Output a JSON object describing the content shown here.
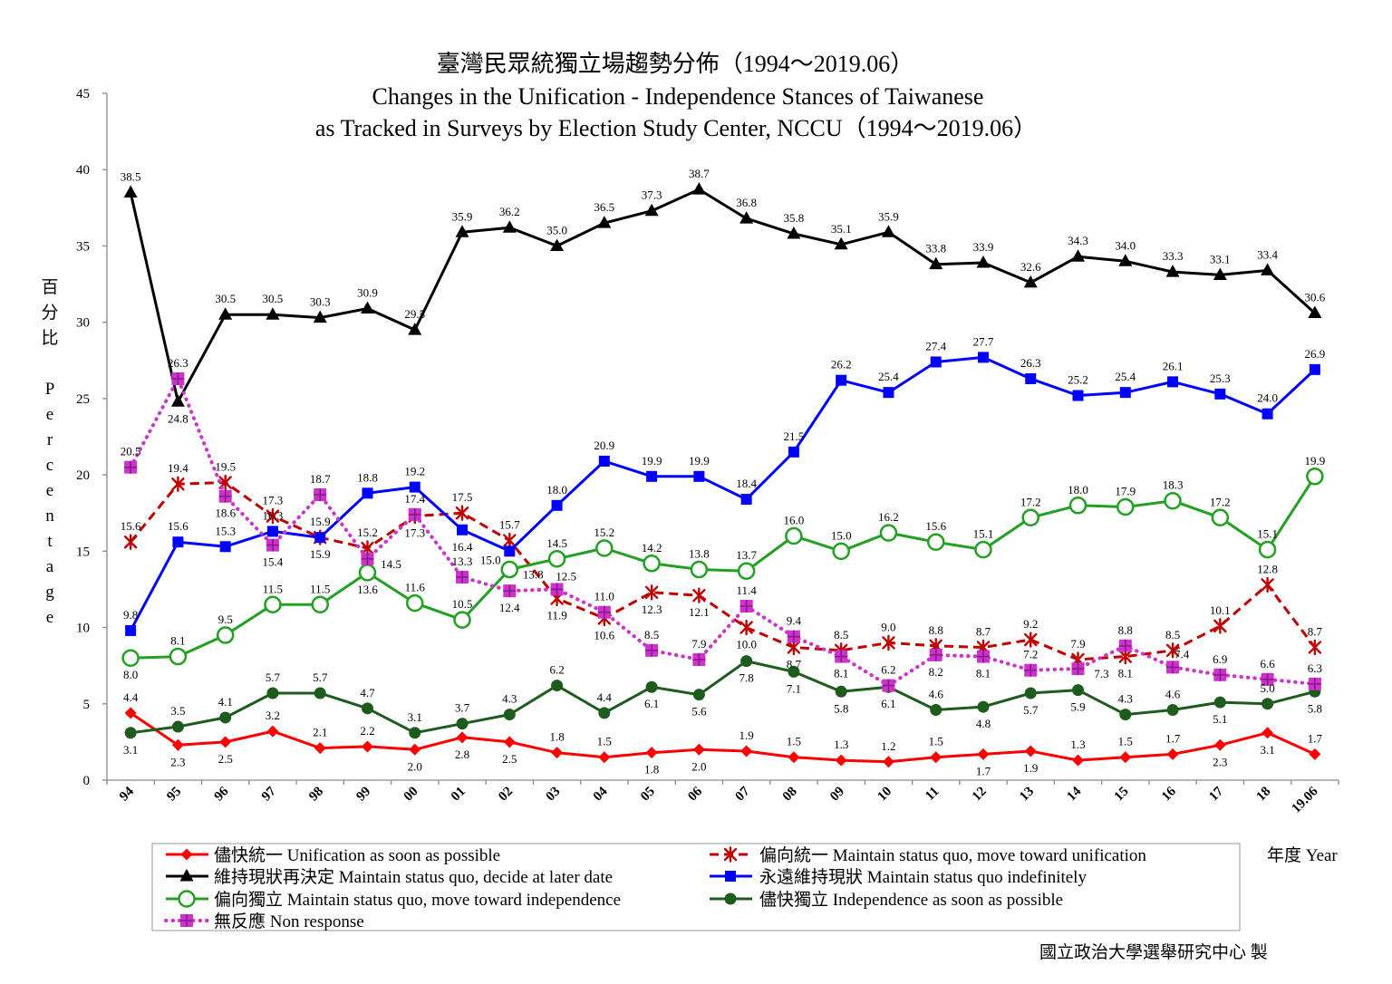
{
  "chart_data": {
    "type": "line",
    "title": [
      "臺灣民眾統獨立場趨勢分佈（1994～2019.06）",
      "Changes in the Unification - Independence Stances of Taiwanese",
      "as Tracked in Surveys by Election Study Center, NCCU（1994～2019.06）"
    ],
    "xlabel": "年度 Year",
    "ylabel": "百分比 Percentage",
    "ylim": [
      0,
      45
    ],
    "yticks": [
      0,
      5,
      10,
      15,
      20,
      25,
      30,
      35,
      40,
      45
    ],
    "grid": false,
    "legend_position": "bottom",
    "categories": [
      "94",
      "95",
      "96",
      "97",
      "98",
      "99",
      "00",
      "01",
      "02",
      "03",
      "04",
      "05",
      "06",
      "07",
      "08",
      "09",
      "10",
      "11",
      "12",
      "13",
      "14",
      "15",
      "16",
      "17",
      "18",
      "19.06"
    ],
    "series": [
      {
        "name": "儘快統一 Unification as soon as possible",
        "color": "#FF0000",
        "line_style": "solid",
        "marker": "diamond",
        "values": [
          4.4,
          2.3,
          2.5,
          3.2,
          2.1,
          2.2,
          2.0,
          2.8,
          2.5,
          1.8,
          1.5,
          1.8,
          2.0,
          1.9,
          1.5,
          1.3,
          1.2,
          1.5,
          1.7,
          1.9,
          1.3,
          1.5,
          1.7,
          2.3,
          3.1,
          1.7
        ]
      },
      {
        "name": "偏向統一 Maintain status quo, move toward unification",
        "color": "#C00000",
        "line_style": "dashed",
        "marker": "asterisk",
        "values": [
          15.6,
          19.4,
          19.5,
          17.3,
          15.9,
          15.2,
          17.3,
          17.5,
          15.7,
          11.9,
          10.6,
          12.3,
          12.1,
          10.0,
          8.7,
          8.5,
          9.0,
          8.8,
          8.7,
          9.2,
          7.9,
          8.1,
          8.5,
          10.1,
          12.8,
          8.7
        ]
      },
      {
        "name": "維持現狀再決定 Maintain status quo, decide at later date",
        "color": "#000000",
        "line_style": "solid",
        "marker": "triangle",
        "values": [
          38.5,
          24.8,
          30.5,
          30.5,
          30.3,
          30.9,
          29.5,
          35.9,
          36.2,
          35.0,
          36.5,
          37.3,
          38.7,
          36.8,
          35.8,
          35.1,
          35.9,
          33.8,
          33.9,
          32.6,
          34.3,
          34.0,
          33.3,
          33.1,
          33.4,
          30.6
        ]
      },
      {
        "name": "永遠維持現狀 Maintain status quo indefinitely",
        "color": "#0000FF",
        "line_style": "solid",
        "marker": "square",
        "values": [
          9.8,
          15.6,
          15.3,
          16.3,
          15.9,
          18.8,
          19.2,
          16.4,
          15.0,
          18.0,
          20.9,
          19.9,
          19.9,
          18.4,
          21.5,
          26.2,
          25.4,
          27.4,
          27.7,
          26.3,
          25.2,
          25.4,
          26.1,
          25.3,
          24.0,
          26.9
        ]
      },
      {
        "name": "偏向獨立 Maintain status quo, move toward independence",
        "color": "#22A022",
        "line_style": "solid",
        "marker": "open-circle",
        "values": [
          8.0,
          8.1,
          9.5,
          11.5,
          11.5,
          13.6,
          11.6,
          10.5,
          13.8,
          14.5,
          15.2,
          14.2,
          13.8,
          13.7,
          16.0,
          15.0,
          16.2,
          15.6,
          15.1,
          17.2,
          18.0,
          17.9,
          18.3,
          17.2,
          15.1,
          19.9
        ]
      },
      {
        "name": "儘快獨立 Independence as soon as possible",
        "color": "#1E5C1E",
        "line_style": "solid",
        "marker": "circle",
        "values": [
          3.1,
          3.5,
          4.1,
          5.7,
          5.7,
          4.7,
          3.1,
          3.7,
          4.3,
          6.2,
          4.4,
          6.1,
          5.6,
          7.8,
          7.1,
          5.8,
          6.1,
          4.6,
          4.8,
          5.7,
          5.9,
          4.3,
          4.6,
          5.1,
          5.0,
          5.8
        ]
      },
      {
        "name": "無反應 Non response",
        "color": "#CC33CC",
        "marker_accent": "#8A1A8A",
        "line_style": "dotted",
        "marker": "square-plus",
        "values": [
          20.5,
          26.3,
          18.6,
          15.4,
          18.7,
          14.5,
          17.4,
          13.3,
          12.4,
          12.5,
          11.0,
          8.5,
          7.9,
          11.4,
          9.4,
          8.1,
          6.2,
          8.2,
          8.1,
          7.2,
          7.3,
          8.8,
          7.4,
          6.9,
          6.6,
          6.3
        ]
      }
    ]
  },
  "credit": "國立政治大學選舉研究中心 製"
}
